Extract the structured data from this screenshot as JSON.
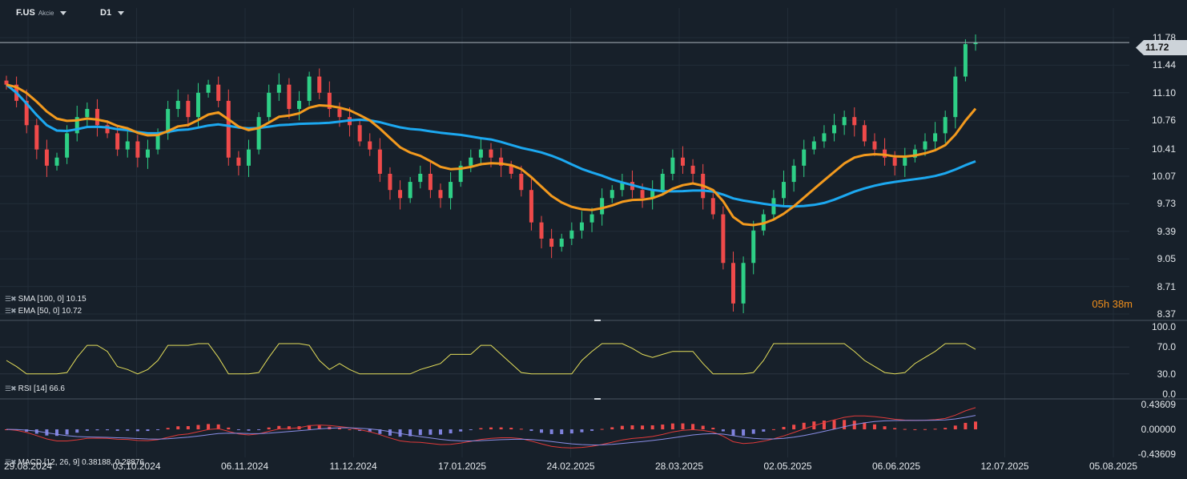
{
  "header": {
    "symbol": "F.US",
    "asset_type": "Akcie",
    "timeframe": "D1"
  },
  "legends": {
    "sma": "SMA [100, 0] 10.15",
    "ema": "EMA [50, 0] 10.72",
    "rsi": "RSI [14] 66.6",
    "macd": "MACD [12, 26, 9] 0.38188, 0.28876"
  },
  "price_tag": "11.72",
  "countdown": "05h 38m",
  "colors": {
    "background": "#17202a",
    "up": "#2ecf86",
    "down": "#ef4a4a",
    "sma": "#1ca8f0",
    "ema": "#f39a1e",
    "rsi": "#e4de5a",
    "macd_hist_pos": "#ef4a4a",
    "macd_hist_neg": "#7f82de"
  },
  "chart_data": [
    {
      "type": "candlestick",
      "title": "F.US",
      "price_axis": [
        "11.78",
        "11.44",
        "11.10",
        "10.76",
        "10.41",
        "10.07",
        "9.73",
        "9.39",
        "9.05",
        "8.71",
        "8.37"
      ],
      "ylim": [
        8.37,
        11.78
      ],
      "date_axis": [
        "29.08.2024",
        "03.10.2024",
        "06.11.2024",
        "11.12.2024",
        "17.01.2025",
        "24.02.2025",
        "28.03.2025",
        "02.05.2025",
        "06.06.2025",
        "12.07.2025",
        "05.08.2025"
      ],
      "close": [
        11.2,
        11.0,
        10.7,
        10.4,
        10.2,
        10.3,
        10.6,
        10.8,
        10.9,
        10.7,
        10.6,
        10.4,
        10.5,
        10.3,
        10.4,
        10.6,
        10.9,
        11.0,
        10.8,
        11.1,
        11.2,
        11.0,
        10.3,
        10.2,
        10.4,
        10.8,
        11.1,
        11.2,
        10.9,
        11.0,
        11.3,
        11.1,
        10.9,
        10.8,
        10.7,
        10.5,
        10.4,
        10.1,
        9.9,
        9.8,
        10.0,
        10.1,
        9.9,
        9.8,
        10.0,
        10.2,
        10.3,
        10.4,
        10.3,
        10.2,
        10.1,
        9.9,
        9.5,
        9.3,
        9.2,
        9.3,
        9.4,
        9.5,
        9.6,
        9.8,
        9.9,
        10.0,
        9.9,
        9.8,
        9.9,
        10.1,
        10.3,
        10.2,
        10.1,
        9.8,
        9.6,
        9.0,
        8.5,
        9.0,
        9.4,
        9.6,
        9.8,
        10.0,
        10.2,
        10.4,
        10.5,
        10.6,
        10.7,
        10.8,
        10.7,
        10.5,
        10.4,
        10.3,
        10.2,
        10.3,
        10.4,
        10.5,
        10.6,
        10.8,
        11.3,
        11.7,
        11.72
      ],
      "sma_100_last": 10.15,
      "ema_50_last": 10.72
    },
    {
      "type": "line",
      "name": "RSI [14]",
      "y_axis": [
        "100.0",
        "70.0",
        "30.0",
        "0.0"
      ],
      "ylim": [
        0,
        100
      ],
      "levels": [
        70,
        30
      ],
      "last": 66.6
    },
    {
      "type": "bar",
      "name": "MACD [12, 26, 9]",
      "y_axis": [
        "0.43609",
        "0.00000",
        "-0.43609"
      ],
      "ylim": [
        -0.43609,
        0.43609
      ],
      "macd_last": 0.38188,
      "signal_last": 0.28876
    }
  ]
}
